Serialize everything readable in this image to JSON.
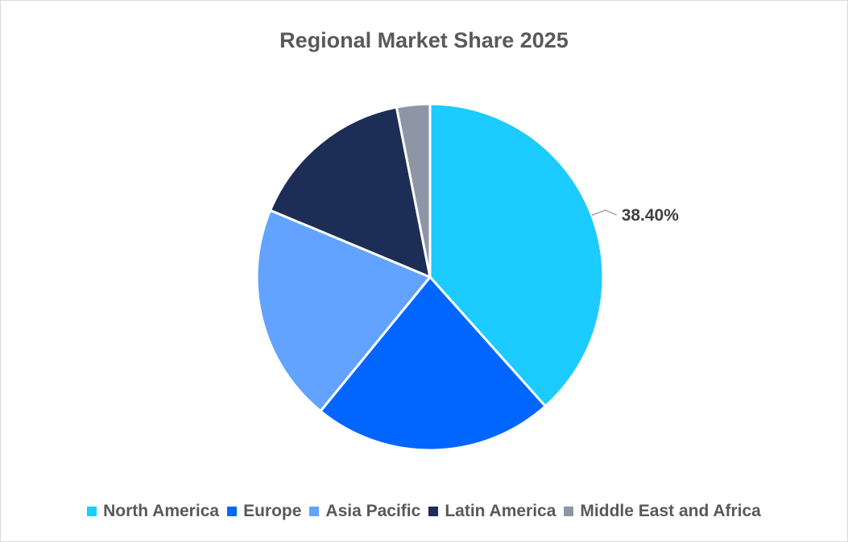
{
  "chart_data": {
    "type": "pie",
    "title": "Regional Market Share 2025",
    "categories": [
      "North America",
      "Europe",
      "Asia Pacific",
      "Latin America",
      "Middle East and Africa"
    ],
    "values": [
      38.4,
      22.5,
      20.4,
      15.6,
      3.1
    ],
    "colors": [
      "#1ccbff",
      "#0066ff",
      "#62a3ff",
      "#1c2e55",
      "#8e96a6"
    ],
    "data_labels": [
      {
        "category": "North America",
        "text": "38.40%"
      }
    ],
    "legend_position": "bottom"
  }
}
